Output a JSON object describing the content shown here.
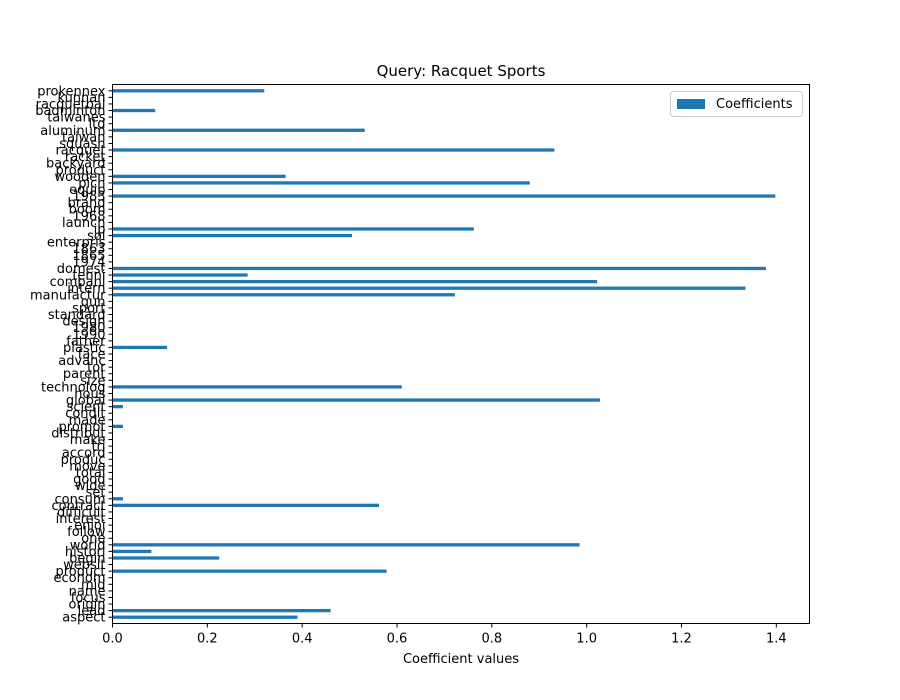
{
  "chart_data": {
    "type": "bar",
    "orientation": "horizontal",
    "title": "Query: Racquet Sports",
    "xlabel": "Coefficient values",
    "ylabel": "",
    "xlim": [
      0,
      1.47
    ],
    "xticks": [
      0,
      0.2,
      0.4,
      0.6,
      0.8,
      1.0,
      1.2,
      1.4
    ],
    "xtick_labels": [
      "0.0",
      "0.2",
      "0.4",
      "0.6",
      "0.8",
      "1.0",
      "1.2",
      "1.4"
    ],
    "grid": false,
    "legend_position": "top-right",
    "bar_color": "#1f77b4",
    "series": [
      {
        "name": "Coefficients"
      }
    ],
    "categories": [
      "aspect",
      "lead",
      "origin",
      "focus",
      "name",
      "mid",
      "econom",
      "product",
      "websit",
      "begin",
      "histori",
      "world",
      "one",
      "follow",
      "enjoi",
      "interest",
      "difficult",
      "contract",
      "consum",
      "set",
      "wide",
      "good",
      "total",
      "move",
      "produc",
      "accord",
      "tri",
      "make",
      "distribut",
      "promot",
      "made",
      "condit",
      "scient",
      "global",
      "hous",
      "technolog",
      "size",
      "parent",
      "tor",
      "advanc",
      "face",
      "plastic",
      "father",
      "1990",
      "1980",
      "design",
      "standard",
      "sport",
      "qun",
      "manufactur",
      "intern",
      "compani",
      "tenni",
      "domest",
      "1974",
      "1865",
      "1863",
      "enterpris",
      "sol",
      "ip",
      "launch",
      "1968",
      "boom",
      "brand",
      "1983",
      "equip",
      "pich",
      "wooden",
      "product",
      "backyard",
      "racket",
      "racquet",
      "squash",
      "taiwan",
      "aluminum",
      "ltd",
      "taiwanes",
      "badminton",
      "racquetbal",
      "kunnan",
      "prokennex"
    ],
    "values": [
      0.39,
      0.46,
      0,
      0,
      0,
      0,
      0,
      0.578,
      0,
      0.225,
      0.082,
      0.985,
      0,
      0,
      0,
      0,
      0,
      0.562,
      0.022,
      0,
      0,
      0,
      0,
      0,
      0,
      0,
      0,
      0,
      0,
      0.022,
      0,
      0,
      0.022,
      1.028,
      0,
      0.61,
      0,
      0,
      0,
      0,
      0,
      0.115,
      0,
      0,
      0,
      0,
      0,
      0,
      0,
      0.722,
      1.335,
      1.022,
      0.285,
      1.378,
      0,
      0,
      0,
      0,
      0.505,
      0.762,
      0,
      0,
      0,
      0,
      1.398,
      0,
      0.88,
      0.365,
      0,
      0,
      0,
      0.932,
      0,
      0,
      0.532,
      0,
      0,
      0.09,
      0,
      0,
      0.32
    ]
  }
}
